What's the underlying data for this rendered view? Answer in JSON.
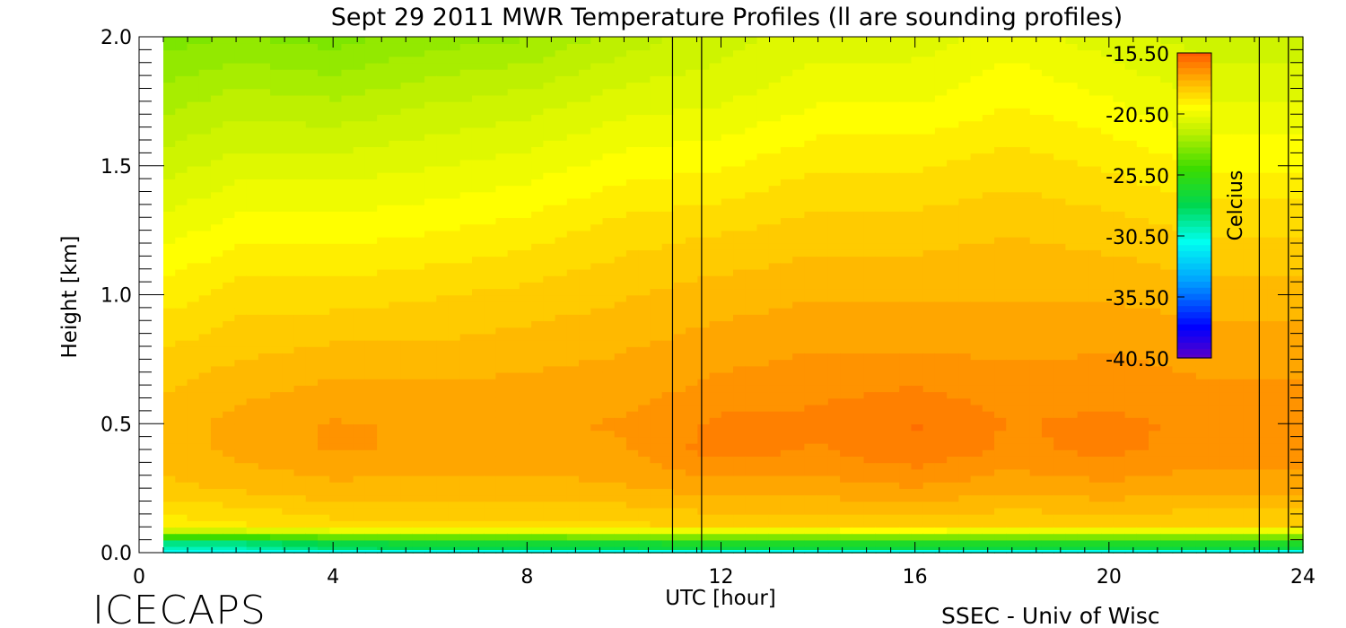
{
  "chart_data": {
    "type": "heatmap",
    "title": "Sept 29 2011 MWR Temperature Profiles (ll are sounding profiles)",
    "xlabel": "UTC [hour]",
    "ylabel": "Height [km]",
    "xlim": [
      0,
      24
    ],
    "ylim": [
      0,
      2.0
    ],
    "x_ticks": [
      "0",
      "4",
      "8",
      "12",
      "16",
      "20",
      "24"
    ],
    "y_ticks": [
      "0.0",
      "0.5",
      "1.0",
      "1.5",
      "2.0"
    ],
    "data_start_hour": 0.5,
    "sounding_times": [
      11.0,
      11.6,
      23.1,
      23.7
    ],
    "colorbar": {
      "label": "Celcius",
      "range": [
        -40.5,
        -15.5
      ],
      "tick_labels": [
        "-15.50",
        "-20.50",
        "-25.50",
        "-30.50",
        "-35.50",
        "-40.50"
      ],
      "tick_values": [
        -15.5,
        -20.5,
        -25.5,
        -30.5,
        -35.5,
        -40.5
      ]
    },
    "heights_km": [
      2.0,
      1.75,
      1.5,
      1.25,
      1.0,
      0.8,
      0.6,
      0.5,
      0.4,
      0.25,
      0.1,
      0.03
    ],
    "profile_hours": [
      0.5,
      2,
      4,
      6,
      8,
      10,
      12,
      14,
      16,
      18,
      20,
      22,
      24
    ],
    "temperature_c": [
      [
        -23.5,
        -23.2,
        -23.5,
        -23.0,
        -22.8,
        -22.0,
        -21.5,
        -21.0,
        -21.0,
        -20.5,
        -21.0,
        -21.5,
        -21.5
      ],
      [
        -22.5,
        -22.0,
        -22.2,
        -21.8,
        -21.5,
        -21.0,
        -20.8,
        -20.3,
        -20.3,
        -19.8,
        -20.2,
        -20.8,
        -20.8
      ],
      [
        -21.5,
        -21.0,
        -21.0,
        -20.8,
        -20.5,
        -20.0,
        -19.8,
        -19.3,
        -19.3,
        -19.0,
        -19.3,
        -19.8,
        -19.8
      ],
      [
        -20.5,
        -20.0,
        -20.0,
        -19.8,
        -19.5,
        -19.0,
        -18.8,
        -18.5,
        -18.5,
        -18.3,
        -18.5,
        -18.8,
        -18.8
      ],
      [
        -19.5,
        -19.0,
        -19.0,
        -18.8,
        -18.6,
        -18.3,
        -18.0,
        -17.8,
        -17.8,
        -17.8,
        -17.8,
        -18.0,
        -18.0
      ],
      [
        -18.8,
        -18.4,
        -18.2,
        -18.2,
        -18.0,
        -17.8,
        -17.5,
        -17.3,
        -17.3,
        -17.4,
        -17.3,
        -17.5,
        -17.5
      ],
      [
        -18.2,
        -17.8,
        -17.5,
        -17.5,
        -17.5,
        -17.4,
        -17.0,
        -16.8,
        -16.6,
        -16.9,
        -16.9,
        -17.1,
        -17.1
      ],
      [
        -18.0,
        -17.6,
        -17.2,
        -17.3,
        -17.3,
        -17.2,
        -16.6,
        -16.6,
        -16.2,
        -16.8,
        -16.6,
        -16.9,
        -16.9
      ],
      [
        -18.0,
        -17.6,
        -17.2,
        -17.3,
        -17.4,
        -17.3,
        -16.5,
        -16.8,
        -16.3,
        -16.9,
        -16.6,
        -17.0,
        -17.0
      ],
      [
        -18.4,
        -18.2,
        -17.9,
        -18.0,
        -18.0,
        -17.8,
        -17.5,
        -17.5,
        -17.3,
        -17.6,
        -17.4,
        -17.6,
        -17.6
      ],
      [
        -19.6,
        -19.4,
        -19.0,
        -19.0,
        -19.0,
        -18.9,
        -18.7,
        -18.7,
        -18.6,
        -18.8,
        -18.7,
        -18.8,
        -18.8
      ],
      [
        -30.0,
        -30.0,
        -28.5,
        -28.0,
        -28.0,
        -27.8,
        -27.5,
        -27.5,
        -27.5,
        -27.5,
        -27.5,
        -27.5,
        -27.5
      ]
    ]
  },
  "footer": {
    "left_logo": "ICECAPS",
    "right_credit": "SSEC - Univ of Wisc"
  }
}
